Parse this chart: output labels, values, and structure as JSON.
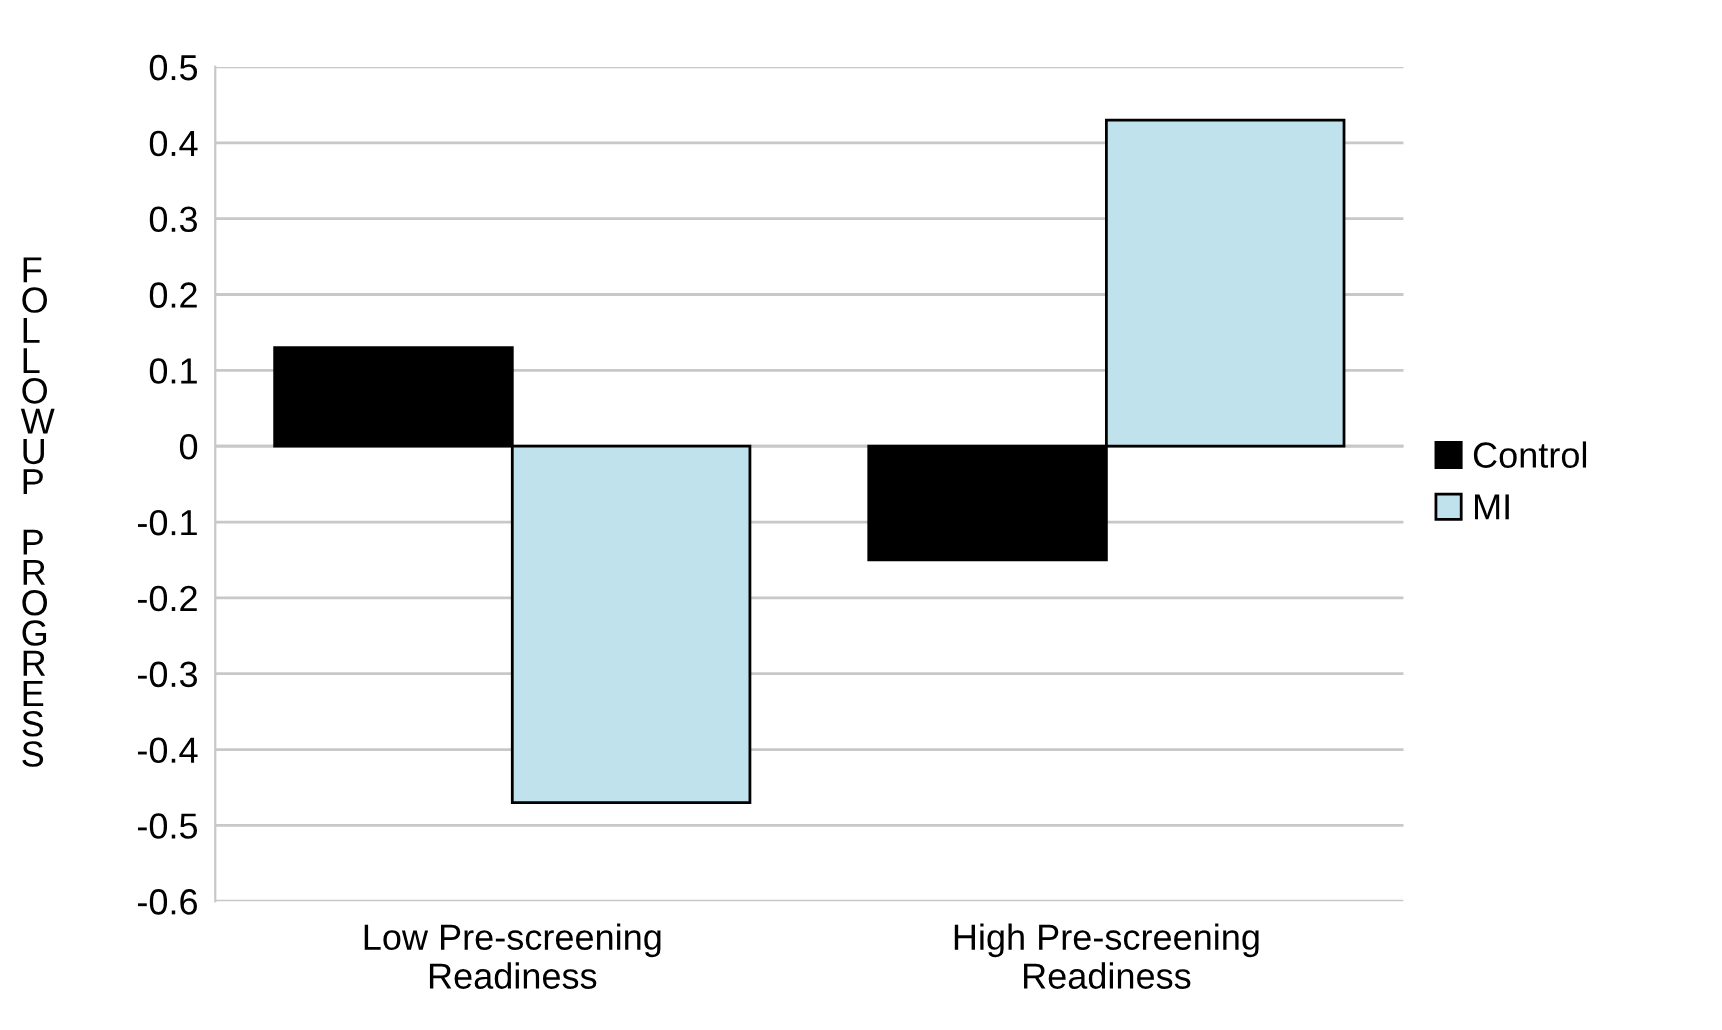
{
  "chart_data": {
    "type": "bar",
    "ylabel": "FOLLOWUP PROGRESS",
    "categories": [
      "Low Pre-screening\nReadiness",
      "High Pre-screening\nReadiness"
    ],
    "series": [
      {
        "name": "Control",
        "color": "#000000",
        "values": [
          0.13,
          -0.15
        ]
      },
      {
        "name": "MI",
        "color": "#c0e2ec",
        "values": [
          -0.47,
          0.43
        ]
      }
    ],
    "ylim": [
      -0.6,
      0.5
    ],
    "yticks": [
      -0.6,
      -0.5,
      -0.4,
      -0.3,
      -0.2,
      -0.1,
      0,
      0.1,
      0.2,
      0.3,
      0.4,
      0.5
    ],
    "grid": "y",
    "legend": "right"
  }
}
